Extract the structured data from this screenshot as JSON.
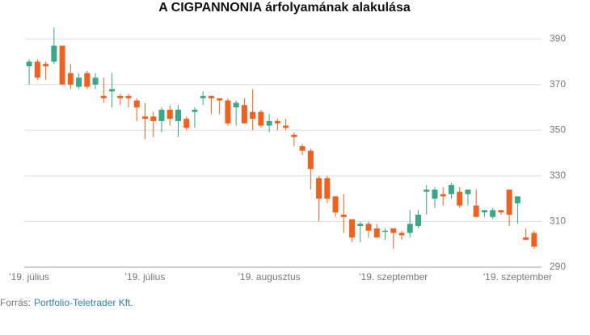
{
  "chart_data": {
    "type": "candlestick",
    "title": "A CIGPANNONIA árfolyamának alakulása",
    "categories": [
      "'19. július",
      null,
      null,
      null,
      null,
      null,
      null,
      null,
      null,
      null,
      null,
      null,
      null,
      null,
      "'19. július",
      null,
      null,
      null,
      null,
      null,
      null,
      null,
      null,
      null,
      null,
      null,
      null,
      null,
      null,
      "'19. augusztus",
      null,
      null,
      null,
      null,
      null,
      null,
      null,
      null,
      null,
      null,
      null,
      null,
      null,
      null,
      "'19. szeptember",
      null,
      null,
      null,
      null,
      null,
      null,
      null,
      null,
      null,
      null,
      null,
      null,
      null,
      null,
      "'19. szeptember",
      null,
      null
    ],
    "open": [
      378,
      380,
      379,
      380,
      387,
      375,
      369,
      375,
      370,
      365,
      367,
      365,
      365,
      363,
      356,
      356,
      354,
      359,
      354,
      355,
      358,
      364,
      365,
      364,
      363,
      360,
      361,
      358,
      358,
      352,
      354,
      352,
      348,
      343,
      341,
      329,
      329,
      321,
      313,
      311,
      308,
      309,
      307,
      306,
      307,
      305,
      305,
      308,
      323,
      320,
      322,
      322,
      323,
      322,
      317,
      314,
      312,
      315,
      324,
      318,
      303,
      305
    ],
    "high": [
      381,
      381,
      380,
      395,
      387,
      379,
      375,
      376,
      375,
      373,
      375,
      366,
      366,
      364,
      362,
      358,
      360,
      361,
      361,
      356,
      360,
      367,
      365,
      364,
      364,
      363,
      364,
      368,
      359,
      357,
      355,
      355,
      349,
      344,
      342,
      330,
      330,
      321,
      322,
      311,
      310,
      310,
      309,
      307,
      307,
      306,
      315,
      315,
      326,
      325,
      325,
      327,
      325,
      324,
      324,
      315,
      316,
      315,
      324,
      321,
      307,
      306
    ],
    "low": [
      370,
      372,
      372,
      379,
      370,
      368,
      368,
      368,
      368,
      362,
      360,
      361,
      360,
      354,
      346,
      347,
      349,
      352,
      347,
      350,
      351,
      361,
      357,
      357,
      352,
      352,
      353,
      350,
      351,
      349,
      350,
      350,
      343,
      339,
      324,
      310,
      318,
      312,
      305,
      301,
      301,
      303,
      303,
      302,
      298,
      302,
      303,
      307,
      313,
      316,
      317,
      320,
      316,
      317,
      312,
      312,
      311,
      313,
      308,
      309,
      302,
      298
    ],
    "close": [
      380,
      373,
      378,
      387,
      370,
      370,
      373,
      369,
      373,
      364,
      368,
      364,
      364,
      360,
      355,
      354,
      359,
      355,
      359,
      351,
      359,
      365,
      364,
      363,
      353,
      362,
      353,
      355,
      352,
      354,
      353,
      351,
      347,
      341,
      333,
      320,
      320,
      314,
      312,
      303,
      309,
      306,
      303,
      306,
      305,
      304,
      309,
      313,
      324,
      324,
      321,
      326,
      317,
      324,
      312,
      315,
      315,
      314,
      313,
      321,
      302,
      299
    ],
    "up_color": "#3aa68a",
    "down_color": "#f0601e",
    "ylim": [
      290,
      395
    ],
    "yticks": [
      290,
      310,
      330,
      350,
      370,
      390
    ],
    "grid": true,
    "source_label": "Forrás:",
    "source": "Portfolio-Teletrader Kft."
  }
}
